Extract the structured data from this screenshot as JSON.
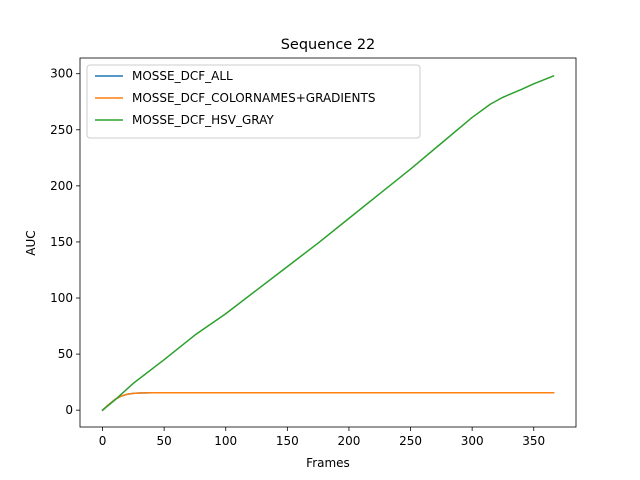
{
  "chart_data": {
    "type": "line",
    "title": "Sequence 22",
    "xlabel": "Frames",
    "ylabel": "AUC",
    "xlim": [
      -18.3,
      384.3
    ],
    "ylim": [
      -15,
      314
    ],
    "xticks": [
      0,
      50,
      100,
      150,
      200,
      250,
      300,
      350
    ],
    "yticks": [
      0,
      50,
      100,
      150,
      200,
      250,
      300
    ],
    "grid": false,
    "legend_position": "top-left",
    "series": [
      {
        "name": "MOSSE_DCF_ALL",
        "color": "#1f77b4",
        "x": [
          0,
          5,
          10,
          15,
          20,
          25,
          30,
          40,
          60,
          100,
          200,
          300,
          366
        ],
        "y": [
          0,
          5,
          9.5,
          12.5,
          14.2,
          15,
          15.3,
          15.5,
          15.5,
          15.5,
          15.5,
          15.5,
          15.5
        ]
      },
      {
        "name": "MOSSE_DCF_COLORNAMES+GRADIENTS",
        "color": "#ff7f0e",
        "x": [
          0,
          5,
          10,
          15,
          20,
          25,
          30,
          40,
          60,
          100,
          200,
          300,
          366
        ],
        "y": [
          0,
          5,
          9.5,
          12.5,
          14.2,
          15,
          15.3,
          15.5,
          15.5,
          15.5,
          15.5,
          15.5,
          15.5
        ]
      },
      {
        "name": "MOSSE_DCF_HSV_GRAY",
        "color": "#2ca02c",
        "x": [
          0,
          10,
          25,
          50,
          75,
          100,
          125,
          150,
          175,
          200,
          225,
          250,
          275,
          300,
          315,
          325,
          340,
          350,
          366
        ],
        "y": [
          0,
          9,
          24,
          45,
          67,
          86,
          107,
          128,
          149,
          171,
          193,
          215,
          238,
          261,
          273,
          279,
          286,
          291,
          298
        ]
      }
    ]
  }
}
